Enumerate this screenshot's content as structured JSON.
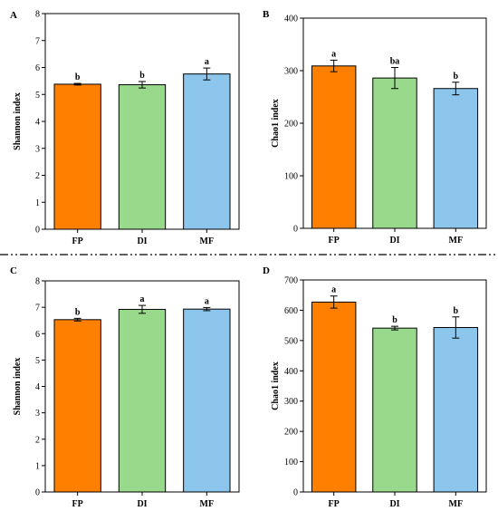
{
  "figure": {
    "separator": "dash-dot-dot",
    "colors": {
      "FP": "#FF8000",
      "DI": "#99D98B",
      "MF": "#8CC6EC"
    }
  },
  "chart_data": [
    {
      "panel": "A",
      "type": "bar",
      "categories": [
        "FP",
        "DI",
        "MF"
      ],
      "values": [
        5.38,
        5.36,
        5.76
      ],
      "errors": [
        0.03,
        0.12,
        0.22
      ],
      "significance": [
        "b",
        "b",
        "a"
      ],
      "ylabel": "Shannon index",
      "ylim": [
        0,
        8
      ],
      "yticks": [
        0,
        1,
        2,
        3,
        4,
        5,
        6,
        7,
        8
      ],
      "grid": false,
      "colors": [
        "#FF8000",
        "#99D98B",
        "#8CC6EC"
      ]
    },
    {
      "panel": "B",
      "type": "bar",
      "categories": [
        "FP",
        "DI",
        "MF"
      ],
      "values": [
        309,
        286,
        266
      ],
      "errors": [
        11,
        20,
        12
      ],
      "significance": [
        "a",
        "ba",
        "b"
      ],
      "ylabel": "Chao1 index",
      "ylim": [
        0,
        400
      ],
      "yticks": [
        0,
        100,
        200,
        300,
        400
      ],
      "grid": false,
      "colors": [
        "#FF8000",
        "#99D98B",
        "#8CC6EC"
      ]
    },
    {
      "panel": "C",
      "type": "bar",
      "categories": [
        "FP",
        "DI",
        "MF"
      ],
      "values": [
        6.53,
        6.92,
        6.93
      ],
      "errors": [
        0.05,
        0.15,
        0.06
      ],
      "significance": [
        "b",
        "a",
        "a"
      ],
      "ylabel": "Shannon index",
      "ylim": [
        0,
        8
      ],
      "yticks": [
        0,
        1,
        2,
        3,
        4,
        5,
        6,
        7,
        8
      ],
      "grid": false,
      "colors": [
        "#FF8000",
        "#99D98B",
        "#8CC6EC"
      ]
    },
    {
      "panel": "D",
      "type": "bar",
      "categories": [
        "FP",
        "DI",
        "MF"
      ],
      "values": [
        627,
        541,
        543
      ],
      "errors": [
        20,
        6,
        35
      ],
      "significance": [
        "a",
        "b",
        "b"
      ],
      "ylabel": "Chao1 index",
      "ylim": [
        0,
        700
      ],
      "yticks": [
        0,
        100,
        200,
        300,
        400,
        500,
        600,
        700
      ],
      "grid": false,
      "colors": [
        "#FF8000",
        "#99D98B",
        "#8CC6EC"
      ]
    }
  ]
}
